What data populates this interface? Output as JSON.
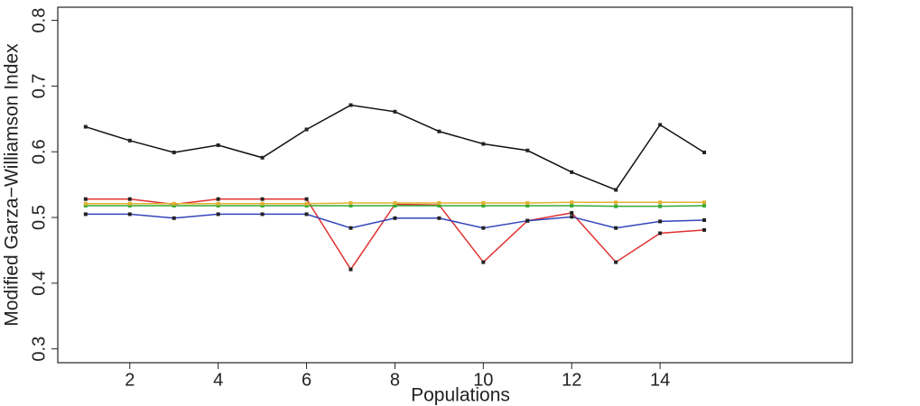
{
  "chart_data": {
    "type": "line",
    "x_label": "Populations",
    "y_label": "Modified Garza−Williamson Index",
    "x": [
      1,
      2,
      3,
      4,
      5,
      6,
      7,
      8,
      9,
      10,
      11,
      12,
      13,
      14,
      15
    ],
    "series": [
      {
        "color": "#111111",
        "values": [
          0.638,
          0.617,
          0.599,
          0.61,
          0.591,
          0.634,
          0.671,
          0.661,
          0.631,
          0.612,
          0.602,
          0.569,
          0.542,
          0.641,
          0.599
        ]
      },
      {
        "color": "#e03030",
        "values": [
          0.528,
          0.528,
          0.52,
          0.528,
          0.528,
          0.528,
          0.421,
          0.52,
          0.519,
          0.432,
          0.495,
          0.507,
          0.432,
          0.476,
          0.481
        ]
      },
      {
        "color": "#3344bb",
        "values": [
          0.505,
          0.505,
          0.499,
          0.505,
          0.505,
          0.505,
          0.484,
          0.499,
          0.499,
          0.484,
          0.495,
          0.501,
          0.484,
          0.494,
          0.496
        ]
      },
      {
        "color": "#33aa33",
        "values": [
          0.518,
          0.518,
          0.518,
          0.518,
          0.518,
          0.518,
          0.518,
          0.518,
          0.518,
          0.518,
          0.518,
          0.518,
          0.517,
          0.517,
          0.518
        ]
      },
      {
        "color": "#e0b030",
        "values": [
          0.521,
          0.521,
          0.521,
          0.521,
          0.521,
          0.521,
          0.522,
          0.522,
          0.522,
          0.522,
          0.522,
          0.523,
          0.523,
          0.523,
          0.523
        ]
      }
    ],
    "xlim": [
      0.37,
      18.35
    ],
    "xticks": [
      2,
      4,
      6,
      8,
      10,
      12,
      14
    ],
    "ylim": [
      0.279,
      0.82
    ],
    "yticks": [
      0.3,
      0.4,
      0.5,
      0.6,
      0.7,
      0.8
    ]
  }
}
